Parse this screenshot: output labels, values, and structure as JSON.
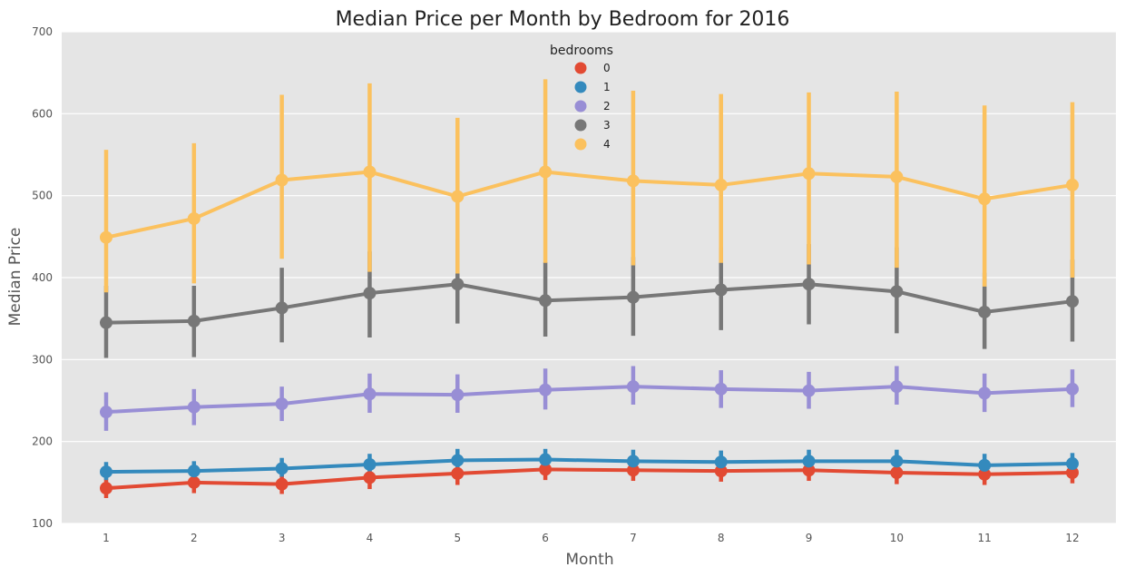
{
  "chart_data": {
    "type": "line",
    "title": "Median Price per Month by Bedroom for 2016",
    "xlabel": "Month",
    "ylabel": "Median Price",
    "categories": [
      "1",
      "2",
      "3",
      "4",
      "5",
      "6",
      "7",
      "8",
      "9",
      "10",
      "11",
      "12"
    ],
    "ylim": [
      100,
      700
    ],
    "yticks": [
      "100",
      "200",
      "300",
      "400",
      "500",
      "600",
      "700"
    ],
    "grid": true,
    "legend": {
      "title": "bedrooms",
      "placement": "top-center"
    },
    "background_color": "#e5e5e5",
    "series": [
      {
        "name": "0",
        "color": "#e24a33",
        "values": [
          143,
          150,
          148,
          156,
          161,
          166,
          165,
          164,
          165,
          162,
          160,
          162
        ],
        "ci_low": [
          131,
          137,
          136,
          142,
          147,
          153,
          152,
          151,
          152,
          148,
          147,
          149
        ],
        "ci_high": [
          155,
          163,
          161,
          170,
          175,
          179,
          178,
          177,
          179,
          176,
          174,
          176
        ]
      },
      {
        "name": "1",
        "color": "#348abd",
        "values": [
          163,
          164,
          167,
          172,
          177,
          178,
          176,
          175,
          176,
          176,
          171,
          173
        ],
        "ci_low": [
          153,
          154,
          157,
          161,
          165,
          166,
          165,
          163,
          164,
          164,
          160,
          161
        ],
        "ci_high": [
          175,
          176,
          180,
          185,
          191,
          191,
          190,
          189,
          190,
          190,
          185,
          186
        ]
      },
      {
        "name": "2",
        "color": "#988ed5",
        "values": [
          236,
          242,
          246,
          258,
          257,
          263,
          267,
          264,
          262,
          267,
          259,
          264
        ],
        "ci_low": [
          213,
          220,
          225,
          235,
          235,
          239,
          245,
          241,
          240,
          245,
          236,
          242
        ],
        "ci_high": [
          260,
          264,
          267,
          283,
          282,
          289,
          292,
          287,
          285,
          292,
          283,
          288
        ]
      },
      {
        "name": "3",
        "color": "#777777",
        "values": [
          345,
          347,
          363,
          381,
          392,
          372,
          376,
          385,
          392,
          383,
          358,
          371
        ],
        "ci_low": [
          302,
          303,
          321,
          327,
          344,
          328,
          329,
          336,
          343,
          332,
          313,
          322
        ],
        "ci_high": [
          390,
          390,
          412,
          432,
          447,
          419,
          425,
          437,
          441,
          437,
          406,
          422
        ]
      },
      {
        "name": "4",
        "color": "#fbc15e",
        "values": [
          449,
          472,
          519,
          529,
          499,
          529,
          518,
          513,
          527,
          523,
          496,
          513
        ],
        "ci_low": [
          382,
          393,
          423,
          407,
          405,
          418,
          415,
          418,
          416,
          412,
          389,
          400
        ],
        "ci_high": [
          556,
          564,
          623,
          637,
          595,
          642,
          628,
          624,
          626,
          627,
          610,
          614
        ]
      }
    ]
  }
}
